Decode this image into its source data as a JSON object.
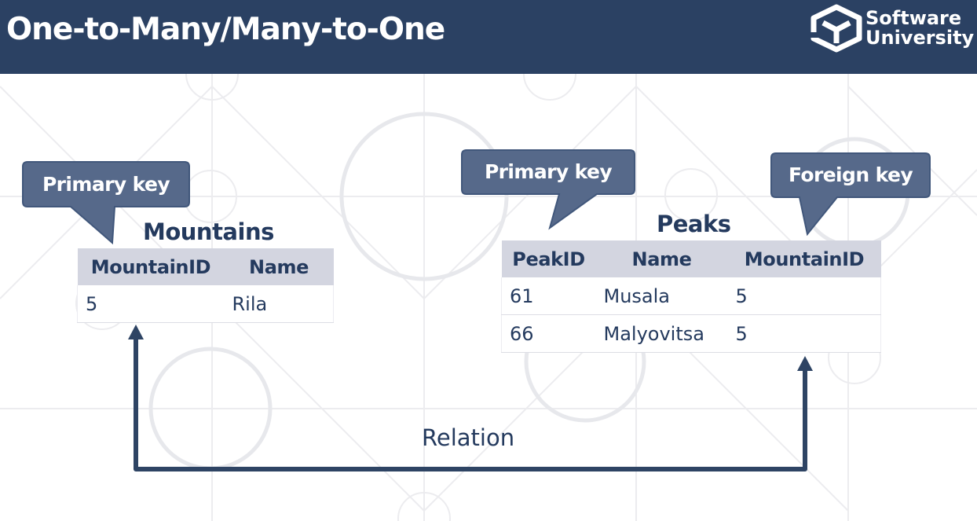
{
  "slide": {
    "title": "One-to-Many/Many-to-One"
  },
  "logo": {
    "line1": "Software",
    "line2": "University"
  },
  "mountains": {
    "title": "Mountains",
    "columns": [
      "MountainID",
      "Name"
    ],
    "rows": [
      [
        "5",
        "Rila"
      ]
    ],
    "callout": "Primary key"
  },
  "peaks": {
    "title": "Peaks",
    "columns": [
      "PeakID",
      "Name",
      "MountainID"
    ],
    "rows": [
      [
        "61",
        "Musala",
        "5"
      ],
      [
        "66",
        "Malyovitsa",
        "5"
      ]
    ],
    "primary_callout": "Primary key",
    "foreign_callout": "Foreign key"
  },
  "relation": {
    "label": "Relation"
  },
  "colors": {
    "header": "#2b4163",
    "callout": "#56698a",
    "text": "#243a5e",
    "table_header": "#d3d5e0",
    "arrow": "#2e4464"
  }
}
